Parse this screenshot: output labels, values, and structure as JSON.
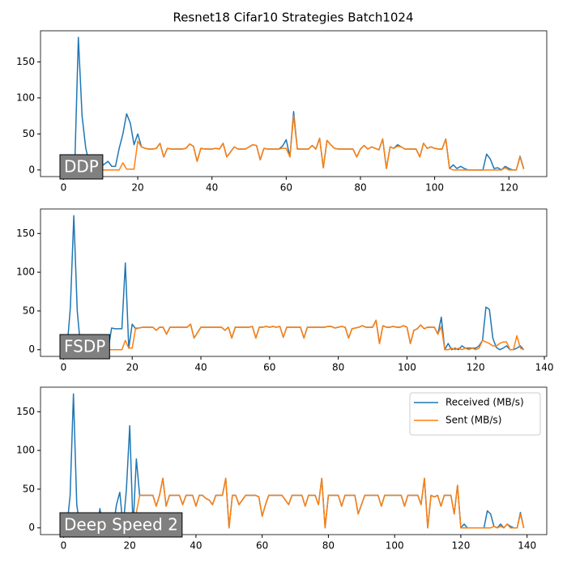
{
  "title": "Resnet18 Cifar10 Strategies Batch1024",
  "chart_data": [
    {
      "type": "line",
      "annotation": "DDP",
      "x": [
        0,
        1,
        2,
        3,
        4,
        5,
        6,
        7,
        8,
        9,
        10,
        11,
        12,
        13,
        14,
        15,
        16,
        17,
        18,
        19,
        20,
        21,
        22,
        23,
        24,
        25,
        26,
        27,
        28,
        29,
        30,
        31,
        32,
        33,
        34,
        35,
        36,
        37,
        38,
        39,
        40,
        41,
        42,
        43,
        44,
        45,
        46,
        47,
        48,
        49,
        50,
        51,
        52,
        53,
        54,
        55,
        56,
        57,
        58,
        59,
        60,
        61,
        62,
        63,
        64,
        65,
        66,
        67,
        68,
        69,
        70,
        71,
        72,
        73,
        74,
        75,
        76,
        77,
        78,
        79,
        80,
        81,
        82,
        83,
        84,
        85,
        86,
        87,
        88,
        89,
        90,
        91,
        92,
        93,
        94,
        95,
        96,
        97,
        98,
        99,
        100,
        101,
        102,
        103,
        104,
        105,
        106,
        107,
        108,
        109,
        110,
        111,
        112,
        113,
        114,
        115,
        116,
        117,
        118,
        119,
        120,
        121,
        122,
        123,
        124
      ],
      "series": [
        {
          "color": "#1f77b4",
          "values": [
            0,
            0,
            0,
            0,
            184,
            75,
            30,
            8,
            5,
            3,
            5,
            8,
            12,
            5,
            5,
            30,
            50,
            78,
            65,
            35,
            50,
            32,
            30,
            29,
            29,
            30,
            37,
            18,
            30,
            29,
            29,
            29,
            29,
            30,
            36,
            33,
            12,
            30,
            29,
            29,
            29,
            30,
            29,
            37,
            18,
            25,
            32,
            29,
            29,
            29,
            32,
            35,
            34,
            14,
            30,
            29,
            29,
            29,
            29,
            33,
            42,
            18,
            81,
            29,
            29,
            29,
            29,
            34,
            29,
            44,
            3,
            41,
            35,
            30,
            29,
            29,
            29,
            29,
            29,
            18,
            29,
            34,
            29,
            32,
            30,
            28,
            43,
            2,
            32,
            30,
            35,
            32,
            29,
            29,
            29,
            29,
            18,
            37,
            30,
            32,
            30,
            29,
            29,
            43,
            2,
            7,
            2,
            5,
            2,
            0,
            0,
            0,
            0,
            0,
            22,
            15,
            2,
            3,
            0,
            5,
            2,
            0,
            0,
            19,
            2
          ]
        },
        {
          "color": "#ff7f0e",
          "values": [
            0,
            0,
            0,
            0,
            0,
            0,
            0,
            0,
            0,
            0,
            0,
            0,
            0,
            0,
            0,
            0,
            10,
            1,
            1,
            1,
            40,
            32,
            30,
            29,
            29,
            30,
            37,
            18,
            30,
            29,
            29,
            29,
            29,
            30,
            36,
            33,
            12,
            30,
            29,
            29,
            29,
            30,
            29,
            37,
            18,
            25,
            32,
            29,
            29,
            29,
            32,
            35,
            34,
            14,
            30,
            29,
            29,
            29,
            29,
            30,
            30,
            18,
            75,
            29,
            29,
            29,
            29,
            34,
            29,
            44,
            3,
            41,
            35,
            30,
            29,
            29,
            29,
            29,
            29,
            18,
            29,
            34,
            29,
            32,
            30,
            28,
            43,
            2,
            32,
            30,
            33,
            32,
            29,
            29,
            29,
            29,
            18,
            37,
            30,
            32,
            30,
            29,
            29,
            43,
            2,
            0,
            0,
            0,
            0,
            0,
            0,
            0,
            0,
            0,
            0,
            0,
            0,
            0,
            0,
            3,
            0,
            0,
            0,
            18,
            1
          ]
        }
      ],
      "xlim": [
        -6.2,
        130.2
      ],
      "xticks": [
        0,
        20,
        40,
        60,
        80,
        100,
        120
      ],
      "ylim": [
        -9.2,
        193.2
      ],
      "yticks": [
        0,
        50,
        100,
        150
      ]
    },
    {
      "type": "line",
      "annotation": "FSDP",
      "x": [
        0,
        1,
        2,
        3,
        4,
        5,
        6,
        7,
        8,
        9,
        10,
        11,
        12,
        13,
        14,
        15,
        16,
        17,
        18,
        19,
        20,
        21,
        22,
        23,
        24,
        25,
        26,
        27,
        28,
        29,
        30,
        31,
        32,
        33,
        34,
        35,
        36,
        37,
        38,
        39,
        40,
        41,
        42,
        43,
        44,
        45,
        46,
        47,
        48,
        49,
        50,
        51,
        52,
        53,
        54,
        55,
        56,
        57,
        58,
        59,
        60,
        61,
        62,
        63,
        64,
        65,
        66,
        67,
        68,
        69,
        70,
        71,
        72,
        73,
        74,
        75,
        76,
        77,
        78,
        79,
        80,
        81,
        82,
        83,
        84,
        85,
        86,
        87,
        88,
        89,
        90,
        91,
        92,
        93,
        94,
        95,
        96,
        97,
        98,
        99,
        100,
        101,
        102,
        103,
        104,
        105,
        106,
        107,
        108,
        109,
        110,
        111,
        112,
        113,
        114,
        115,
        116,
        117,
        118,
        119,
        120,
        121,
        122,
        123,
        124,
        125,
        126,
        127,
        128,
        129,
        130,
        131,
        132,
        133,
        134
      ],
      "series": [
        {
          "color": "#1f77b4",
          "values": [
            0,
            0,
            55,
            173,
            50,
            2,
            0,
            0,
            0,
            0,
            0,
            0,
            0,
            0,
            28,
            27,
            27,
            27,
            112,
            2,
            33,
            27,
            28,
            29,
            29,
            29,
            29,
            25,
            29,
            29,
            20,
            29,
            29,
            29,
            29,
            29,
            29,
            33,
            15,
            22,
            29,
            29,
            29,
            29,
            29,
            29,
            29,
            25,
            29,
            15,
            29,
            29,
            29,
            29,
            29,
            30,
            15,
            29,
            29,
            30,
            29,
            30,
            29,
            30,
            16,
            29,
            29,
            29,
            29,
            29,
            15,
            29,
            29,
            29,
            29,
            29,
            29,
            30,
            30,
            28,
            29,
            30,
            29,
            15,
            27,
            28,
            29,
            31,
            29,
            29,
            29,
            38,
            8,
            31,
            29,
            29,
            30,
            29,
            29,
            31,
            29,
            8,
            25,
            27,
            32,
            27,
            29,
            29,
            29,
            20,
            42,
            0,
            8,
            0,
            2,
            0,
            5,
            2,
            2,
            2,
            2,
            5,
            12,
            55,
            52,
            15,
            3,
            0,
            2,
            5,
            0,
            0,
            2,
            5,
            0
          ]
        },
        {
          "color": "#ff7f0e",
          "values": [
            0,
            0,
            0,
            0,
            0,
            0,
            0,
            0,
            0,
            0,
            0,
            0,
            0,
            0,
            0,
            0,
            0,
            0,
            12,
            2,
            2,
            28,
            28,
            29,
            29,
            29,
            29,
            25,
            29,
            29,
            20,
            29,
            29,
            29,
            29,
            29,
            29,
            33,
            15,
            22,
            29,
            29,
            29,
            29,
            29,
            29,
            29,
            25,
            29,
            15,
            29,
            29,
            29,
            29,
            29,
            30,
            15,
            29,
            29,
            30,
            29,
            30,
            29,
            30,
            16,
            29,
            29,
            29,
            29,
            29,
            15,
            29,
            29,
            29,
            29,
            29,
            29,
            30,
            30,
            28,
            29,
            30,
            29,
            15,
            27,
            28,
            29,
            31,
            29,
            29,
            29,
            38,
            8,
            31,
            29,
            29,
            30,
            29,
            29,
            31,
            29,
            8,
            25,
            27,
            32,
            27,
            29,
            29,
            29,
            20,
            30,
            0,
            0,
            2,
            0,
            2,
            0,
            2,
            0,
            2,
            0,
            2,
            12,
            10,
            8,
            5,
            5,
            8,
            10,
            10,
            0,
            0,
            18,
            2,
            0
          ]
        }
      ],
      "xlim": [
        -6.7,
        140.7
      ],
      "xticks": [
        0,
        20,
        40,
        60,
        80,
        100,
        120,
        140
      ],
      "ylim": [
        -8.65,
        181.65
      ],
      "yticks": [
        0,
        50,
        100,
        150
      ]
    },
    {
      "type": "line",
      "annotation": "Deep Speed 2",
      "legend": "upper right",
      "x": [
        0,
        1,
        2,
        3,
        4,
        5,
        6,
        7,
        8,
        9,
        10,
        11,
        12,
        13,
        14,
        15,
        16,
        17,
        18,
        19,
        20,
        21,
        22,
        23,
        24,
        25,
        26,
        27,
        28,
        29,
        30,
        31,
        32,
        33,
        34,
        35,
        36,
        37,
        38,
        39,
        40,
        41,
        42,
        43,
        44,
        45,
        46,
        47,
        48,
        49,
        50,
        51,
        52,
        53,
        54,
        55,
        56,
        57,
        58,
        59,
        60,
        61,
        62,
        63,
        64,
        65,
        66,
        67,
        68,
        69,
        70,
        71,
        72,
        73,
        74,
        75,
        76,
        77,
        78,
        79,
        80,
        81,
        82,
        83,
        84,
        85,
        86,
        87,
        88,
        89,
        90,
        91,
        92,
        93,
        94,
        95,
        96,
        97,
        98,
        99,
        100,
        101,
        102,
        103,
        104,
        105,
        106,
        107,
        108,
        109,
        110,
        111,
        112,
        113,
        114,
        115,
        116,
        117,
        118,
        119,
        120,
        121,
        122,
        123,
        124,
        125,
        126,
        127,
        128,
        129,
        130,
        131,
        132,
        133,
        134,
        135,
        136,
        137,
        138,
        139
      ],
      "series": [
        {
          "name": "Received (MB/s)",
          "color": "#1f77b4",
          "values": [
            0,
            0,
            42,
            173,
            30,
            0,
            0,
            0,
            0,
            0,
            0,
            25,
            0,
            0,
            0,
            0,
            30,
            46,
            0,
            50,
            132,
            0,
            89,
            42,
            42,
            42,
            42,
            42,
            28,
            42,
            64,
            28,
            42,
            42,
            42,
            42,
            30,
            42,
            42,
            42,
            28,
            42,
            42,
            38,
            36,
            30,
            42,
            42,
            42,
            64,
            0,
            42,
            42,
            30,
            36,
            42,
            42,
            42,
            42,
            40,
            15,
            30,
            42,
            42,
            42,
            42,
            42,
            36,
            30,
            42,
            42,
            42,
            42,
            28,
            42,
            42,
            42,
            30,
            64,
            0,
            42,
            42,
            42,
            42,
            28,
            42,
            42,
            42,
            42,
            18,
            30,
            42,
            42,
            42,
            42,
            42,
            28,
            42,
            42,
            42,
            42,
            42,
            42,
            28,
            42,
            42,
            42,
            42,
            30,
            64,
            0,
            42,
            40,
            42,
            28,
            42,
            42,
            42,
            18,
            55,
            0,
            5,
            0,
            0,
            0,
            0,
            0,
            0,
            22,
            18,
            2,
            0,
            5,
            0,
            5,
            2,
            0,
            0,
            20,
            0
          ]
        },
        {
          "name": "Sent (MB/s)",
          "color": "#ff7f0e",
          "values": [
            0,
            0,
            0,
            0,
            0,
            0,
            0,
            0,
            0,
            0,
            0,
            0,
            0,
            0,
            0,
            0,
            0,
            0,
            0,
            0,
            0,
            0,
            20,
            42,
            42,
            42,
            42,
            42,
            28,
            42,
            64,
            28,
            42,
            42,
            42,
            42,
            30,
            42,
            42,
            42,
            28,
            42,
            42,
            38,
            36,
            30,
            42,
            42,
            42,
            64,
            0,
            42,
            42,
            30,
            36,
            42,
            42,
            42,
            42,
            40,
            15,
            30,
            42,
            42,
            42,
            42,
            42,
            36,
            30,
            42,
            42,
            42,
            42,
            28,
            42,
            42,
            42,
            30,
            64,
            0,
            42,
            42,
            42,
            42,
            28,
            42,
            42,
            42,
            42,
            18,
            30,
            42,
            42,
            42,
            42,
            42,
            28,
            42,
            42,
            42,
            42,
            42,
            42,
            28,
            42,
            42,
            42,
            42,
            30,
            64,
            0,
            42,
            40,
            42,
            28,
            42,
            42,
            42,
            18,
            55,
            0,
            0,
            0,
            0,
            0,
            0,
            0,
            0,
            0,
            0,
            2,
            0,
            2,
            0,
            5,
            0,
            0,
            0,
            18,
            0
          ]
        }
      ],
      "xlim": [
        -6.95,
        145.95
      ],
      "xticks": [
        0,
        20,
        40,
        60,
        80,
        100,
        120,
        140
      ],
      "ylim": [
        -8.65,
        181.65
      ],
      "yticks": [
        0,
        50,
        100,
        150
      ]
    }
  ]
}
